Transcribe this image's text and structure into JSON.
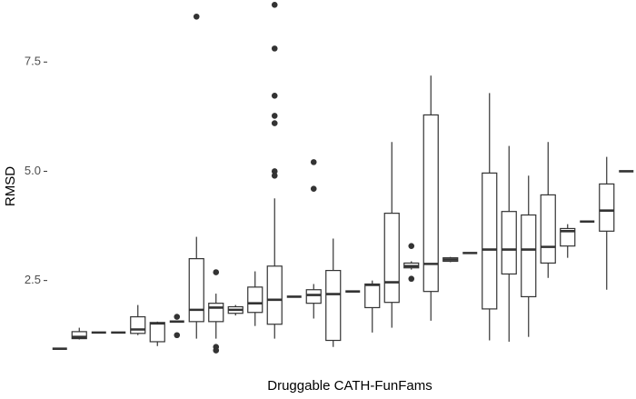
{
  "chart_data": {
    "type": "box",
    "x_label": "Druggable CATH-FunFams",
    "y_label": "RMSD",
    "ylim": [
      0.6,
      8.92
    ],
    "yticks": [
      2.5,
      {
        "value": 5,
        "label": "5.0"
      },
      7.5
    ],
    "color": "#333333",
    "categories": [
      null,
      null,
      null,
      null,
      null,
      null,
      null,
      null,
      null,
      null,
      null,
      null,
      null,
      null,
      null,
      null,
      null,
      null,
      null,
      null,
      null,
      null,
      null,
      null,
      null,
      null,
      null,
      null,
      null,
      null
    ],
    "boxes": [
      {
        "min": 0.94,
        "q1": 0.94,
        "median": 0.94,
        "q3": 0.94,
        "max": 0.94
      },
      {
        "min": 1.15,
        "q1": 1.17,
        "median": 1.21,
        "q3": 1.33,
        "max": 1.42
      },
      {
        "min": 1.31,
        "q1": 1.31,
        "median": 1.31,
        "q3": 1.31,
        "max": 1.31
      },
      {
        "min": 1.31,
        "q1": 1.31,
        "median": 1.31,
        "q3": 1.31,
        "max": 1.31
      },
      {
        "min": 1.25,
        "q1": 1.29,
        "median": 1.38,
        "q3": 1.67,
        "max": 1.94
      },
      {
        "min": 1.0,
        "q1": 1.1,
        "median": 1.52,
        "q3": 1.54,
        "max": 1.56
      },
      {
        "min": 1.56,
        "q1": 1.56,
        "median": 1.56,
        "q3": 1.56,
        "max": 1.56,
        "outliers": [
          1.67,
          1.25
        ]
      },
      {
        "min": 1.17,
        "q1": 1.56,
        "median": 1.83,
        "q3": 3.0,
        "max": 3.5,
        "outliers": [
          8.54
        ]
      },
      {
        "min": 1.17,
        "q1": 1.56,
        "median": 1.88,
        "q3": 1.98,
        "max": 2.2,
        "outliers": [
          2.69,
          0.98,
          0.9
        ]
      },
      {
        "min": 1.7,
        "q1": 1.75,
        "median": 1.83,
        "q3": 1.9,
        "max": 1.94
      },
      {
        "min": 1.46,
        "q1": 1.77,
        "median": 1.98,
        "q3": 2.35,
        "max": 2.71
      },
      {
        "min": 1.17,
        "q1": 1.5,
        "median": 2.06,
        "q3": 2.83,
        "max": 4.38,
        "outliers": [
          8.81,
          7.81,
          6.73,
          6.27,
          6.1,
          5.0,
          4.9
        ]
      },
      {
        "min": 2.13,
        "q1": 2.13,
        "median": 2.13,
        "q3": 2.13,
        "max": 2.13
      },
      {
        "min": 1.63,
        "q1": 1.98,
        "median": 2.17,
        "q3": 2.29,
        "max": 2.42,
        "outliers": [
          5.21,
          4.6
        ]
      },
      {
        "min": 0.98,
        "q1": 1.13,
        "median": 2.19,
        "q3": 2.73,
        "max": 3.46
      },
      {
        "min": 2.25,
        "q1": 2.25,
        "median": 2.25,
        "q3": 2.25,
        "max": 2.25
      },
      {
        "min": 1.31,
        "q1": 1.88,
        "median": 2.4,
        "q3": 2.42,
        "max": 2.5
      },
      {
        "min": 1.42,
        "q1": 2.0,
        "median": 2.46,
        "q3": 4.04,
        "max": 5.67
      },
      {
        "min": 2.75,
        "q1": 2.79,
        "median": 2.83,
        "q3": 2.9,
        "max": 2.94,
        "outliers": [
          3.29,
          2.54
        ]
      },
      {
        "min": 1.58,
        "q1": 2.25,
        "median": 2.88,
        "q3": 6.29,
        "max": 7.19
      },
      {
        "min": 2.92,
        "q1": 2.94,
        "median": 2.98,
        "q3": 3.02,
        "max": 3.04
      },
      {
        "min": 3.13,
        "q1": 3.13,
        "median": 3.13,
        "q3": 3.13,
        "max": 3.13
      },
      {
        "min": 1.13,
        "q1": 1.85,
        "median": 3.21,
        "q3": 4.96,
        "max": 6.79
      },
      {
        "min": 1.1,
        "q1": 2.65,
        "median": 3.21,
        "q3": 4.08,
        "max": 5.58
      },
      {
        "min": 1.21,
        "q1": 2.13,
        "median": 3.21,
        "q3": 4.0,
        "max": 4.9
      },
      {
        "min": 2.56,
        "q1": 2.9,
        "median": 3.27,
        "q3": 4.46,
        "max": 5.67
      },
      {
        "min": 3.02,
        "q1": 3.29,
        "median": 3.63,
        "q3": 3.69,
        "max": 3.79
      },
      {
        "min": 3.85,
        "q1": 3.85,
        "median": 3.85,
        "q3": 3.85,
        "max": 3.85
      },
      {
        "min": 2.29,
        "q1": 3.63,
        "median": 4.1,
        "q3": 4.71,
        "max": 5.33
      },
      {
        "min": 5.0,
        "q1": 5.0,
        "median": 5.0,
        "q3": 5.0,
        "max": 5.0
      }
    ]
  }
}
